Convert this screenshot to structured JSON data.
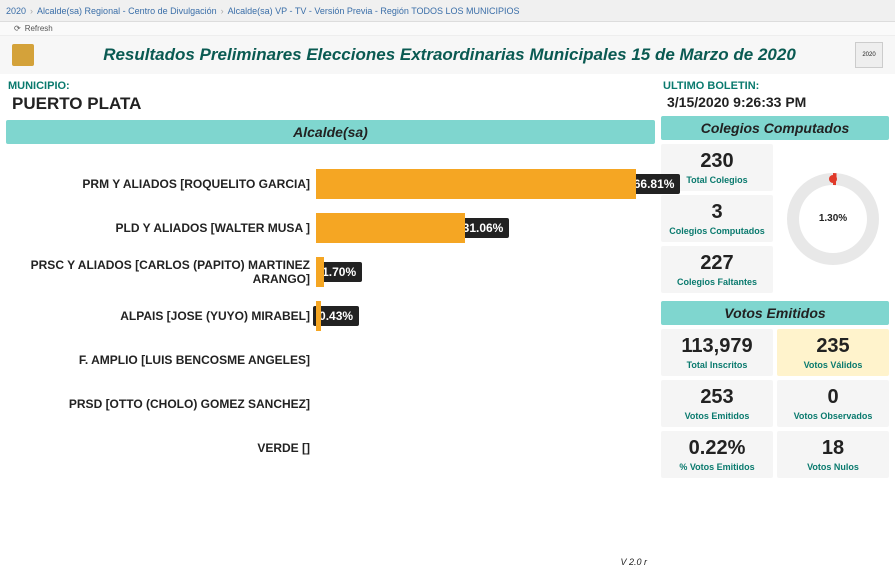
{
  "browser": {
    "crumb1": "2020",
    "crumb2": "Alcalde(sa) Regional - Centro de Divulgación",
    "crumb3": "Alcalde(sa) VP - TV - Versión Previa - Región TODOS LOS MUNICIPIOS",
    "refresh": "Refresh"
  },
  "header": {
    "title": "Resultados Preliminares Elecciones Extraordinarias Municipales 15 de Marzo de 2020",
    "badge": "2020"
  },
  "meta": {
    "municipio_label": "MUNICIPIO:",
    "municipio_value": "PUERTO PLATA",
    "boletin_label": "ULTIMO BOLETIN:",
    "boletin_value": "3/15/2020 9:26:33 PM"
  },
  "chart": {
    "title": "Alcalde(sa)",
    "type": "horizontal_bar",
    "bar_color": "#f5a623",
    "pct_bg": "#222222",
    "pct_fg": "#ffffff",
    "max_pct": 100,
    "candidates": [
      {
        "label": "PRM Y ALIADOS [ROQUELITO GARCIA]",
        "pct": 66.81,
        "pct_text": "66.81%"
      },
      {
        "label": "PLD Y ALIADOS [WALTER MUSA ]",
        "pct": 31.06,
        "pct_text": "31.06%"
      },
      {
        "label": "PRSC Y ALIADOS [CARLOS (PAPITO) MARTINEZ ARANGO]",
        "pct": 1.7,
        "pct_text": "1.70%"
      },
      {
        "label": "ALPAIS [JOSE (YUYO) MIRABEL]",
        "pct": 0.43,
        "pct_text": "0.43%"
      },
      {
        "label": "F. AMPLIO [LUIS BENCOSME ANGELES]",
        "pct": 0,
        "pct_text": ""
      },
      {
        "label": "PRSD [OTTO (CHOLO) GOMEZ SANCHEZ]",
        "pct": 0,
        "pct_text": ""
      },
      {
        "label": "VERDE []",
        "pct": 0,
        "pct_text": ""
      }
    ]
  },
  "colegios": {
    "title": "Colegios Computados",
    "total": {
      "value": "230",
      "label": "Total Colegios"
    },
    "computados": {
      "value": "3",
      "label": "Colegios Computados"
    },
    "faltantes": {
      "value": "227",
      "label": "Colegios Faltantes"
    },
    "donut": {
      "value_pct": 1.3,
      "value_text": "1.30%",
      "ring_color": "#e8e8e8",
      "dot_color": "#e03a2a"
    }
  },
  "votos": {
    "title": "Votos Emitidos",
    "inscritos": {
      "value": "113,979",
      "label": "Total Inscritos"
    },
    "validos": {
      "value": "235",
      "label": "Votos Válidos",
      "highlight": true
    },
    "emitidos": {
      "value": "253",
      "label": "Votos Emitidos"
    },
    "observados": {
      "value": "0",
      "label": "Votos Observados"
    },
    "pct": {
      "value": "0.22%",
      "label": "% Votos Emitidos"
    },
    "nulos": {
      "value": "18",
      "label": "Votos Nulos"
    }
  },
  "version": "V 2.0 r",
  "colors": {
    "teal_header": "#7fd6cf",
    "teal_text": "#0a7a6e",
    "bar": "#f5a623",
    "highlight_bg": "#fff3cc"
  }
}
